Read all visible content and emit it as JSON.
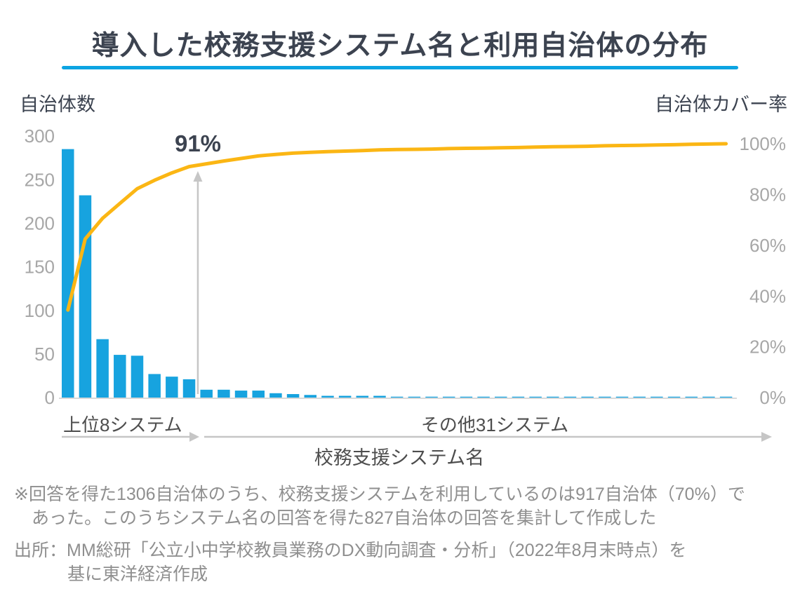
{
  "title": "導入した校務支援システム名と利用自治体の分布",
  "chart_data": {
    "type": "bar",
    "subtype": "pareto (bar + cumulative line)",
    "title": "導入した校務支援システム名と利用自治体の分布",
    "xlabel": "校務支援システム名",
    "grid": "off",
    "legend": "none",
    "bar_series": {
      "name": "自治体数",
      "values": [
        285,
        232,
        67,
        49,
        48,
        27,
        24,
        21,
        9,
        9,
        8,
        8,
        5,
        4,
        3,
        2,
        2,
        2,
        2,
        1,
        1,
        1,
        1,
        1,
        1,
        1,
        1,
        1,
        1,
        1,
        1,
        1,
        1,
        1,
        1,
        1,
        1,
        1,
        1
      ]
    },
    "line_series": {
      "name": "自治体カバー率",
      "cumulative_percent": [
        34.5,
        62.5,
        70.6,
        76.5,
        82.3,
        85.6,
        88.5,
        91.0,
        92.1,
        93.2,
        94.2,
        95.2,
        95.8,
        96.3,
        96.6,
        96.9,
        97.1,
        97.3,
        97.6,
        97.7,
        97.8,
        97.9,
        98.1,
        98.2,
        98.3,
        98.4,
        98.5,
        98.7,
        98.8,
        98.9,
        99.0,
        99.2,
        99.3,
        99.4,
        99.5,
        99.6,
        99.8,
        99.9,
        100.0
      ]
    },
    "left_axis": {
      "label": "自治体数",
      "ticks": [
        "300",
        "250",
        "200",
        "150",
        "100",
        "50",
        "0"
      ],
      "min": 0,
      "max": 300
    },
    "right_axis": {
      "label": "自治体カバー率",
      "ticks": [
        "100%",
        "80%",
        "60%",
        "40%",
        "20%",
        "0%"
      ],
      "min": 0,
      "max": 100
    },
    "annotation": {
      "label": "91%",
      "at_bar_boundary": 8
    },
    "x_groups": [
      {
        "label": "上位8システム",
        "bar_count": 8
      },
      {
        "label": "その他31システム",
        "bar_count": 31
      }
    ]
  },
  "colors": {
    "bar": "#17A3DF",
    "line": "#FBB614",
    "accent_underline": "#0CA4E2",
    "title_text": "#3C4350",
    "tick_text": "#A7A7A7",
    "axis_label_text": "#3C4350",
    "group_label_text": "#4D4D4D",
    "arrow": "#C6C6C6",
    "footnote_text": "#8F8F8F"
  },
  "footnote": {
    "line1": "※回答を得た1306自治体のうち、校務支援システムを利用しているのは917自治体（70%）で",
    "line2": "あった。このうちシステム名の回答を得た827自治体の回答を集計して作成した"
  },
  "source": {
    "line1": "出所：MM総研「公立小中学校教員業務のDX動向調査・分析」（2022年8月末時点）を",
    "line2": "基に東洋経済作成"
  }
}
